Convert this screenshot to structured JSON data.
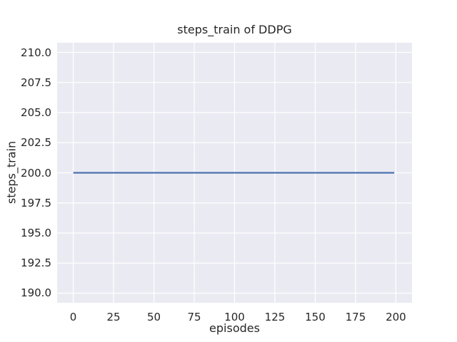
{
  "chart_data": {
    "type": "line",
    "title": "steps_train of DDPG",
    "xlabel": "episodes",
    "ylabel": "steps_train",
    "xlim": [
      -10,
      210
    ],
    "ylim": [
      189.2,
      210.8
    ],
    "grid": true,
    "legend": "none",
    "x_ticks": [
      {
        "v": 0,
        "label": "0"
      },
      {
        "v": 25,
        "label": "25"
      },
      {
        "v": 50,
        "label": "50"
      },
      {
        "v": 75,
        "label": "75"
      },
      {
        "v": 100,
        "label": "100"
      },
      {
        "v": 125,
        "label": "125"
      },
      {
        "v": 150,
        "label": "150"
      },
      {
        "v": 175,
        "label": "175"
      },
      {
        "v": 200,
        "label": "200"
      }
    ],
    "y_ticks": [
      {
        "v": 190.0,
        "label": "190.0"
      },
      {
        "v": 192.5,
        "label": "192.5"
      },
      {
        "v": 195.0,
        "label": "195.0"
      },
      {
        "v": 197.5,
        "label": "197.5"
      },
      {
        "v": 200.0,
        "label": "200.0"
      },
      {
        "v": 202.5,
        "label": "202.5"
      },
      {
        "v": 205.0,
        "label": "205.0"
      },
      {
        "v": 207.5,
        "label": "207.5"
      },
      {
        "v": 210.0,
        "label": "210.0"
      }
    ],
    "series": [
      {
        "name": "steps_train",
        "x": [
          0,
          199
        ],
        "y": [
          200,
          200
        ]
      }
    ],
    "colors": {
      "figure_bg": "#ffffff",
      "plot_bg": "#eaeaf2",
      "grid": "#ffffff",
      "text": "#262626",
      "line": "#4c72b0"
    }
  }
}
